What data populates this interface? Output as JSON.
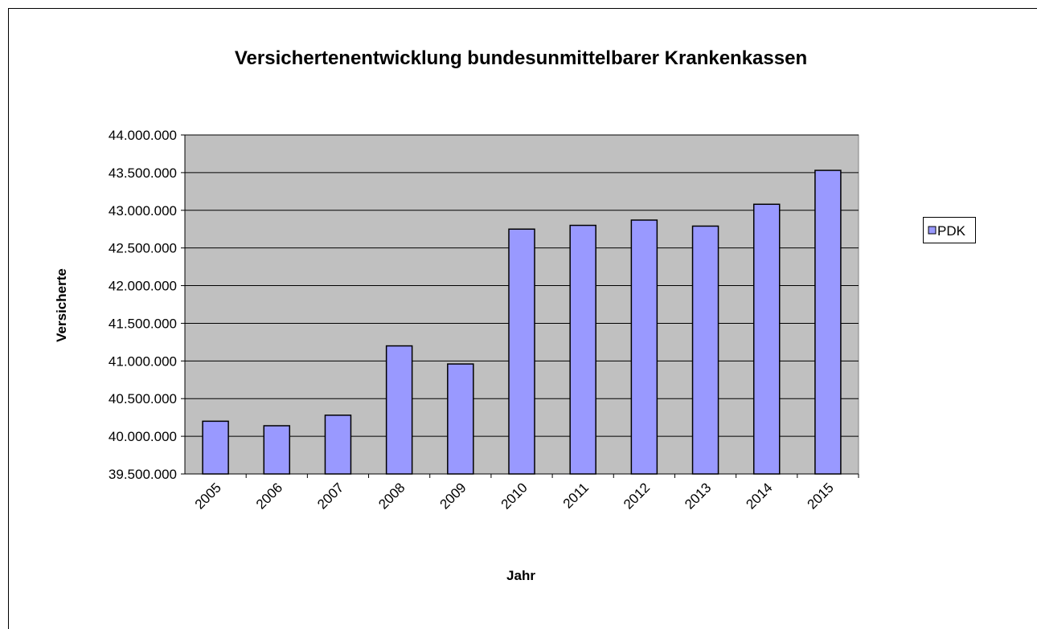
{
  "chart_data": {
    "type": "bar",
    "title": "Versichertenentwicklung bundesunmittelbarer Krankenkassen",
    "x_label": "Jahr",
    "y_label": "Versicherte",
    "categories": [
      "2005",
      "2006",
      "2007",
      "2008",
      "2009",
      "2010",
      "2011",
      "2012",
      "2013",
      "2014",
      "2015"
    ],
    "series": [
      {
        "name": "PDK",
        "color": "#9999ff",
        "values": [
          40200000,
          40140000,
          40280000,
          41200000,
          40960000,
          42750000,
          42800000,
          42870000,
          42790000,
          43080000,
          43530000
        ]
      }
    ],
    "ylim": [
      39500000,
      44000000
    ],
    "yticks": [
      {
        "value": 39500000,
        "label": "39.500.000"
      },
      {
        "value": 40000000,
        "label": "40.000.000"
      },
      {
        "value": 40500000,
        "label": "40.500.000"
      },
      {
        "value": 41000000,
        "label": "41.000.000"
      },
      {
        "value": 41500000,
        "label": "41.500.000"
      },
      {
        "value": 42000000,
        "label": "42.000.000"
      },
      {
        "value": 42500000,
        "label": "42.500.000"
      },
      {
        "value": 43000000,
        "label": "43.000.000"
      },
      {
        "value": 43500000,
        "label": "43.500.000"
      },
      {
        "value": 44000000,
        "label": "44.000.000"
      }
    ],
    "grid": true,
    "legend": "right"
  }
}
